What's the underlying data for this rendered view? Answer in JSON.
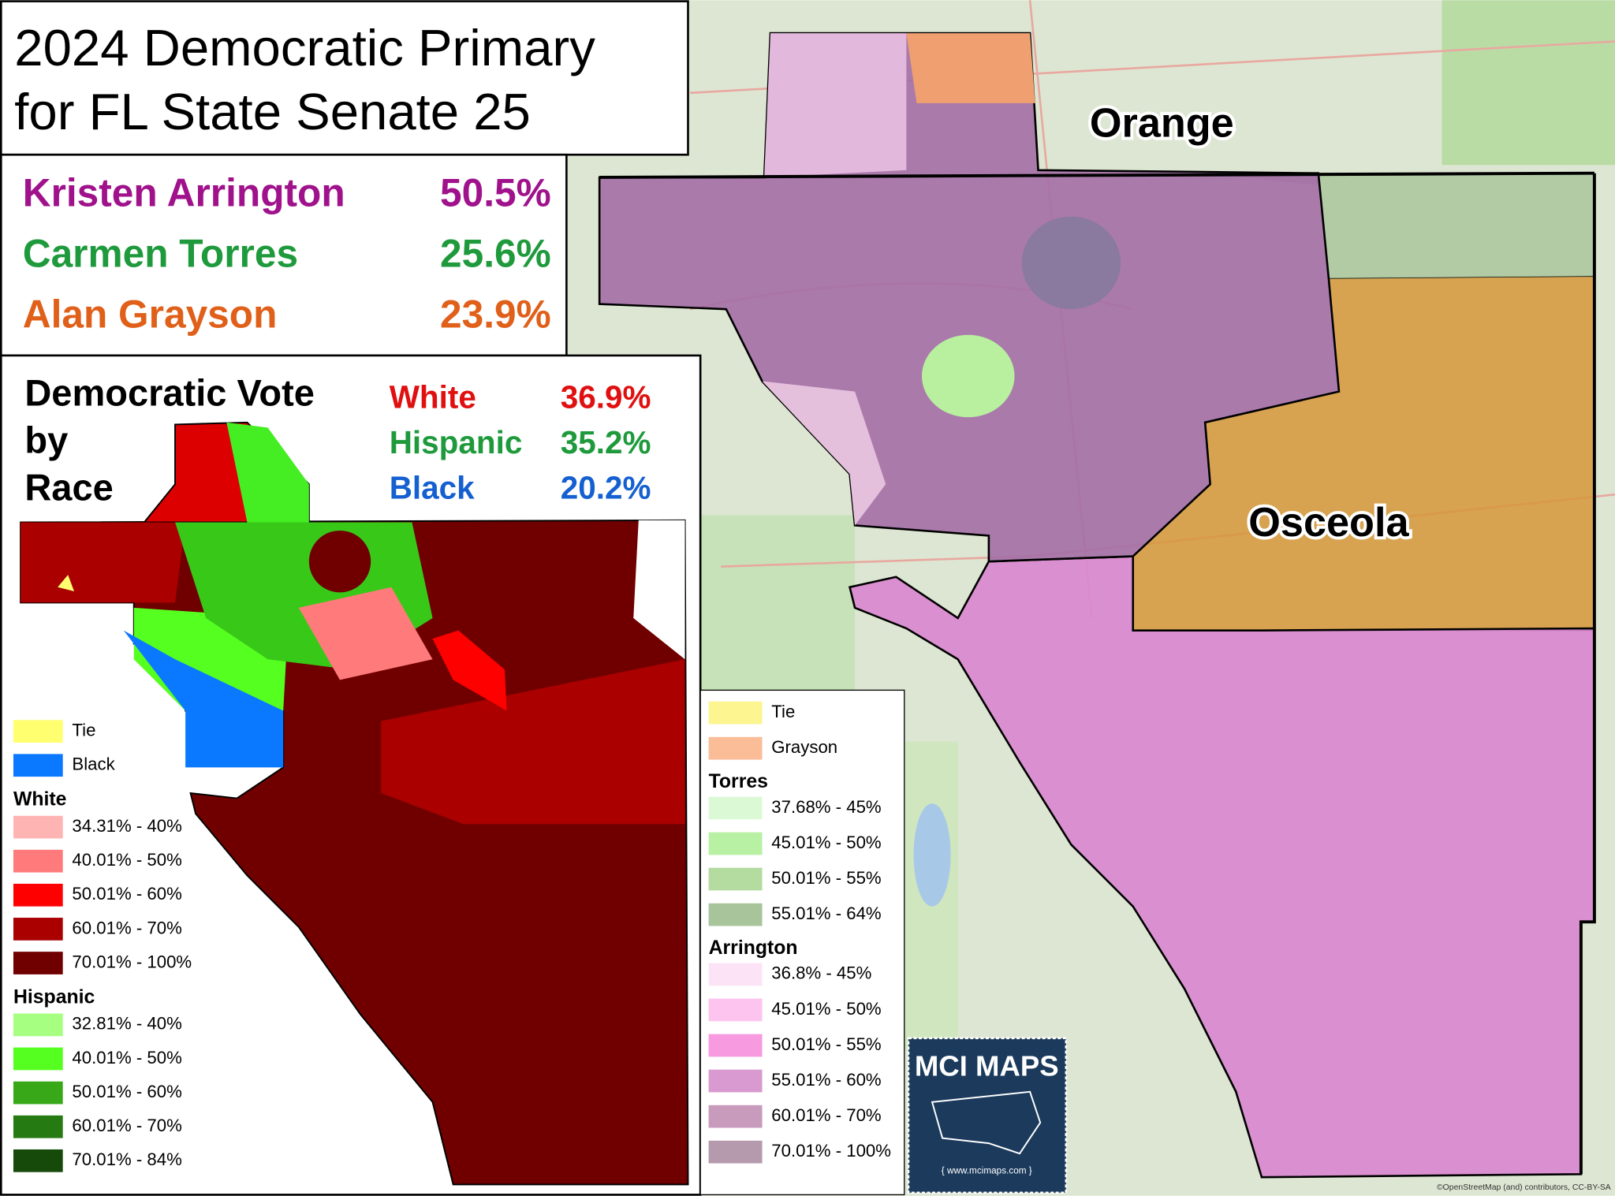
{
  "title": [
    "2024 Democratic Primary",
    "for FL State Senate 25"
  ],
  "results": [
    {
      "name": "Kristen Arrington",
      "share": "50.5%",
      "color": "#a0128c"
    },
    {
      "name": "Carmen Torres",
      "share": "25.6%",
      "color": "#1e9a3c"
    },
    {
      "name": "Alan Grayson",
      "share": "23.9%",
      "color": "#e0601a"
    }
  ],
  "race_panel": {
    "title": [
      "Democratic Vote",
      "by",
      "Race"
    ],
    "rows": [
      {
        "race": "White",
        "share": "36.9%",
        "color": "#e01010"
      },
      {
        "race": "Hispanic",
        "share": "35.2%",
        "color": "#1e9a3c"
      },
      {
        "race": "Black",
        "share": "20.2%",
        "color": "#1560d0"
      }
    ]
  },
  "race_legend": {
    "items": [
      {
        "label": "Tie",
        "color": "#ffff70"
      },
      {
        "label": "Black",
        "color": "#0a78ff"
      }
    ],
    "groups": [
      {
        "title": "White",
        "items": [
          {
            "label": "34.31% - 40%",
            "color": "#ffb4b4"
          },
          {
            "label": "40.01% - 50%",
            "color": "#ff7a7a"
          },
          {
            "label": "50.01% - 60%",
            "color": "#ff0000"
          },
          {
            "label": "60.01% - 70%",
            "color": "#aa0000"
          },
          {
            "label": "70.01% - 100%",
            "color": "#700000"
          }
        ]
      },
      {
        "title": "Hispanic",
        "items": [
          {
            "label": "32.81% - 40%",
            "color": "#a6ff80"
          },
          {
            "label": "40.01% - 50%",
            "color": "#55ff20"
          },
          {
            "label": "50.01% - 60%",
            "color": "#38a818"
          },
          {
            "label": "60.01% - 70%",
            "color": "#257a12"
          },
          {
            "label": "70.01% - 84%",
            "color": "#154a0a"
          }
        ]
      }
    ]
  },
  "candidate_legend": {
    "items": [
      {
        "label": "Tie",
        "color": "#fcf590"
      },
      {
        "label": "Grayson",
        "color": "#fbbd98"
      }
    ],
    "groups": [
      {
        "title": "Torres",
        "items": [
          {
            "label": "37.68% - 45%",
            "color": "#dcf9d6"
          },
          {
            "label": "45.01% - 50%",
            "color": "#b8f0a4"
          },
          {
            "label": "50.01% - 55%",
            "color": "#b4dba0"
          },
          {
            "label": "55.01% - 64%",
            "color": "#a8c49a"
          }
        ]
      },
      {
        "title": "Arrington",
        "items": [
          {
            "label": "36.8% - 45%",
            "color": "#fce4f6"
          },
          {
            "label": "45.01% - 50%",
            "color": "#fcc4ee"
          },
          {
            "label": "50.01% - 55%",
            "color": "#f79ae0"
          },
          {
            "label": "55.01% - 60%",
            "color": "#d89ad0"
          },
          {
            "label": "60.01% - 70%",
            "color": "#c89abc"
          },
          {
            "label": "70.01% - 100%",
            "color": "#b59aad"
          }
        ]
      }
    ]
  },
  "map_labels": [
    "Orange",
    "Osceola"
  ],
  "logo": {
    "title": "MCI MAPS",
    "url": "{ www.mcimaps.com }"
  },
  "attribution": "©OpenStreetMap (and) contributors, CC-BY-SA"
}
